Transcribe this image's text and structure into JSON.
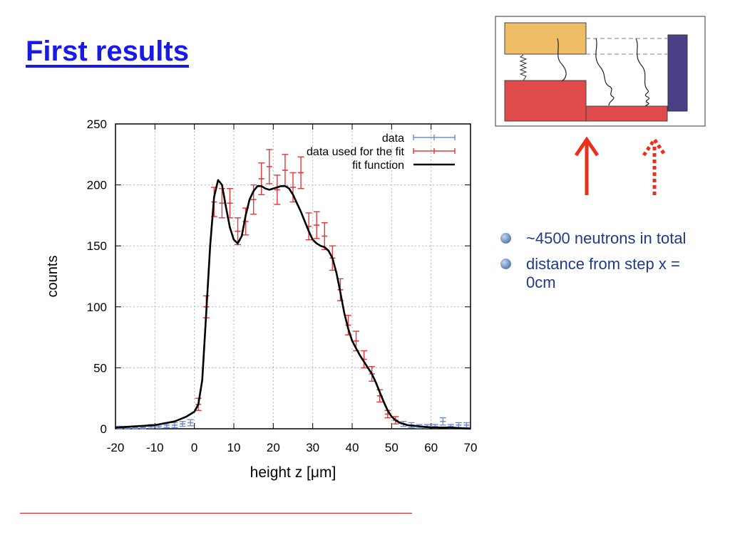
{
  "slide": {
    "title": "First results",
    "bullets": [
      "~4500 neutrons in total",
      "distance from step x = 0cm"
    ]
  },
  "colors": {
    "title": "#1a1ae6",
    "bullet_text": "#1f3a8a",
    "data_series": "#6f8fd0",
    "fit_data_series": "#e23a3a",
    "fit_line": "#000000",
    "schematic_top_block": "#eebd66",
    "schematic_bottom_block": "#e04a4a",
    "schematic_mirror": "#4a4088",
    "arrows": "#e8301c"
  },
  "icons": {
    "bullet": "bullet-dot-icon",
    "solid_arrow": "up-arrow-icon",
    "dashed_arrow": "dashed-up-arrow-icon"
  },
  "chart_data": {
    "type": "scatter",
    "title": "",
    "xlabel": "height z [μm]",
    "ylabel": "counts",
    "xlim": [
      -20,
      70
    ],
    "ylim": [
      0,
      250
    ],
    "xticks": [
      -20,
      -10,
      0,
      10,
      20,
      30,
      40,
      50,
      60,
      70
    ],
    "yticks": [
      0,
      50,
      100,
      150,
      200,
      250
    ],
    "grid": true,
    "legend_position": "top-right",
    "series": [
      {
        "name": "data",
        "style": "errorbar",
        "x": [
          -19,
          -17,
          -15,
          -13,
          -11,
          -9,
          -7,
          -5,
          -3,
          -1,
          53,
          55,
          57,
          59,
          61,
          63,
          65,
          67,
          69
        ],
        "y": [
          1,
          1,
          1,
          1,
          2,
          2,
          3,
          3,
          4,
          5,
          4,
          3,
          2,
          2,
          2,
          6,
          2,
          3,
          3
        ],
        "err": [
          1,
          1,
          1,
          1,
          1.5,
          1.5,
          2,
          2,
          2,
          2.5,
          2,
          2,
          1.5,
          1.5,
          1.5,
          3,
          1.5,
          2,
          2
        ]
      },
      {
        "name": "data used for the fit",
        "style": "errorbar",
        "x": [
          1,
          3,
          5,
          7,
          9,
          11,
          13,
          15,
          17,
          19,
          21,
          23,
          25,
          27,
          29,
          31,
          33,
          35,
          37,
          39,
          41,
          43,
          45,
          47,
          49,
          51
        ],
        "y": [
          20,
          100,
          186,
          185,
          185,
          162,
          170,
          188,
          205,
          215,
          196,
          212,
          198,
          210,
          166,
          167,
          158,
          140,
          114,
          85,
          72,
          57,
          45,
          27,
          12,
          7
        ],
        "err": [
          5,
          9,
          12,
          12,
          12,
          11,
          11,
          12,
          13,
          14,
          12,
          13,
          12,
          13,
          11,
          11,
          11,
          10,
          9,
          8,
          8,
          7,
          6,
          5,
          3,
          3
        ]
      },
      {
        "name": "fit function",
        "style": "line",
        "x": [
          -20,
          -15,
          -10,
          -5,
          -2,
          0,
          1,
          2,
          3,
          4,
          5,
          6,
          7,
          8,
          9,
          10,
          11,
          12,
          13,
          14,
          15,
          16,
          17,
          18,
          19,
          20,
          21,
          22,
          23,
          24,
          25,
          26,
          27,
          28,
          29,
          30,
          31,
          32,
          33,
          34,
          35,
          36,
          37,
          38,
          39,
          40,
          41,
          42,
          43,
          44,
          45,
          46,
          47,
          48,
          49,
          50,
          51,
          52,
          54,
          57,
          60,
          65,
          70
        ],
        "y": [
          1,
          2,
          3,
          6,
          10,
          14,
          20,
          40,
          95,
          150,
          190,
          204,
          200,
          182,
          165,
          155,
          152,
          158,
          175,
          188,
          195,
          199,
          199,
          197,
          196,
          197,
          198,
          199,
          199,
          197,
          192,
          185,
          178,
          170,
          162,
          155,
          152,
          150,
          149,
          146,
          140,
          128,
          112,
          95,
          82,
          72,
          66,
          60,
          55,
          50,
          45,
          38,
          30,
          22,
          15,
          10,
          7,
          5,
          3,
          2,
          1,
          1,
          0
        ]
      }
    ]
  }
}
